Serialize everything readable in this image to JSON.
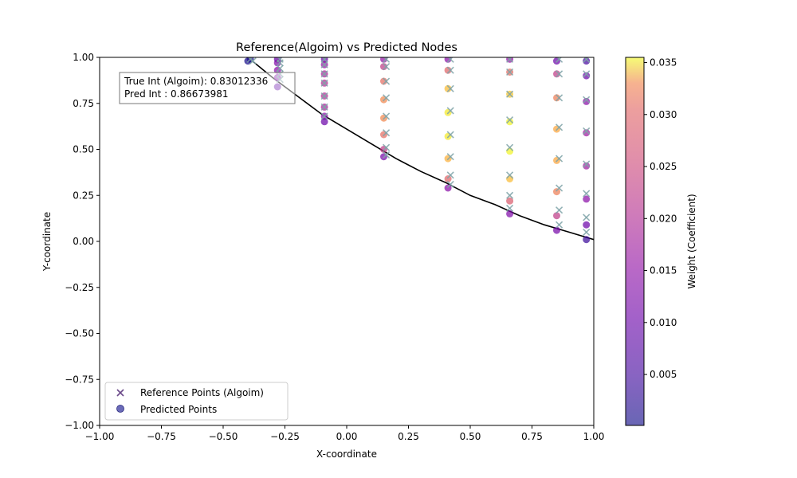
{
  "chart_data": {
    "type": "scatter",
    "title": "Reference(Algoim) vs Predicted Nodes",
    "xlabel": "X-coordinate",
    "ylabel": "Y-coordinate",
    "xlim": [
      -1.0,
      1.0
    ],
    "ylim": [
      -1.0,
      1.0
    ],
    "xticks": [
      "−1.00",
      "−0.75",
      "−0.50",
      "−0.25",
      "0.00",
      "0.25",
      "0.50",
      "0.75",
      "1.00"
    ],
    "yticks": [
      "−1.00",
      "−0.75",
      "−0.50",
      "−0.25",
      "0.00",
      "0.25",
      "0.50",
      "0.75",
      "1.00"
    ],
    "xtick_values": [
      -1.0,
      -0.75,
      -0.5,
      -0.25,
      0.0,
      0.25,
      0.5,
      0.75,
      1.0
    ],
    "ytick_values": [
      -1.0,
      -0.75,
      -0.5,
      -0.25,
      0.0,
      0.25,
      0.5,
      0.75,
      1.0
    ],
    "grid": false,
    "legend": {
      "placement": "lower-left",
      "entries": [
        {
          "label": "Reference Points (Algoim)",
          "marker": "x"
        },
        {
          "label": "Predicted Points",
          "marker": "circle"
        }
      ]
    },
    "annotation": {
      "line1": "True Int (Algoim): 0.83012336",
      "line2": "Pred Int : 0.86673981"
    },
    "colorbar": {
      "label": "Weight (Coefficient)",
      "colormap": "plasma",
      "range": [
        0.0001,
        0.0355
      ],
      "ticks": [
        "0.005",
        "0.010",
        "0.015",
        "0.020",
        "0.025",
        "0.030",
        "0.035"
      ],
      "tick_values": [
        0.005,
        0.01,
        0.015,
        0.02,
        0.025,
        0.03,
        0.035
      ]
    },
    "boundary_curve": {
      "color": "#000000",
      "x": [
        -0.4,
        -0.3,
        -0.2,
        -0.1,
        0.0,
        0.1,
        0.2,
        0.3,
        0.4,
        0.5,
        0.6,
        0.7,
        0.8,
        0.9,
        1.0
      ],
      "y": [
        1.0,
        0.89,
        0.79,
        0.69,
        0.61,
        0.53,
        0.45,
        0.38,
        0.32,
        0.25,
        0.2,
        0.14,
        0.09,
        0.05,
        0.01
      ]
    },
    "series": [
      {
        "name": "Reference Points (Algoim)",
        "marker": "x",
        "color": "#7fa3a8",
        "points": [
          {
            "x": -0.39,
            "y": 0.99
          },
          {
            "x": -0.38,
            "y": 0.98
          },
          {
            "x": -0.27,
            "y": 0.99
          },
          {
            "x": -0.27,
            "y": 0.97
          },
          {
            "x": -0.27,
            "y": 0.94
          },
          {
            "x": -0.27,
            "y": 0.91
          },
          {
            "x": -0.27,
            "y": 0.88
          },
          {
            "x": -0.09,
            "y": 0.99
          },
          {
            "x": -0.09,
            "y": 0.96
          },
          {
            "x": -0.09,
            "y": 0.91
          },
          {
            "x": -0.09,
            "y": 0.86
          },
          {
            "x": -0.09,
            "y": 0.79
          },
          {
            "x": -0.09,
            "y": 0.73
          },
          {
            "x": -0.09,
            "y": 0.68
          },
          {
            "x": 0.16,
            "y": 0.99
          },
          {
            "x": 0.16,
            "y": 0.95
          },
          {
            "x": 0.16,
            "y": 0.87
          },
          {
            "x": 0.16,
            "y": 0.78
          },
          {
            "x": 0.16,
            "y": 0.68
          },
          {
            "x": 0.16,
            "y": 0.59
          },
          {
            "x": 0.16,
            "y": 0.51
          },
          {
            "x": 0.16,
            "y": 0.47
          },
          {
            "x": 0.42,
            "y": 0.99
          },
          {
            "x": 0.42,
            "y": 0.93
          },
          {
            "x": 0.42,
            "y": 0.83
          },
          {
            "x": 0.42,
            "y": 0.71
          },
          {
            "x": 0.42,
            "y": 0.58
          },
          {
            "x": 0.42,
            "y": 0.46
          },
          {
            "x": 0.42,
            "y": 0.36
          },
          {
            "x": 0.42,
            "y": 0.31
          },
          {
            "x": 0.66,
            "y": 0.99
          },
          {
            "x": 0.66,
            "y": 0.92
          },
          {
            "x": 0.66,
            "y": 0.8
          },
          {
            "x": 0.66,
            "y": 0.66
          },
          {
            "x": 0.66,
            "y": 0.51
          },
          {
            "x": 0.66,
            "y": 0.36
          },
          {
            "x": 0.66,
            "y": 0.25
          },
          {
            "x": 0.66,
            "y": 0.18
          },
          {
            "x": 0.86,
            "y": 0.99
          },
          {
            "x": 0.86,
            "y": 0.91
          },
          {
            "x": 0.86,
            "y": 0.78
          },
          {
            "x": 0.86,
            "y": 0.62
          },
          {
            "x": 0.86,
            "y": 0.45
          },
          {
            "x": 0.86,
            "y": 0.29
          },
          {
            "x": 0.86,
            "y": 0.17
          },
          {
            "x": 0.86,
            "y": 0.09
          },
          {
            "x": 0.97,
            "y": 0.99
          },
          {
            "x": 0.97,
            "y": 0.91
          },
          {
            "x": 0.97,
            "y": 0.77
          },
          {
            "x": 0.97,
            "y": 0.6
          },
          {
            "x": 0.97,
            "y": 0.42
          },
          {
            "x": 0.97,
            "y": 0.26
          },
          {
            "x": 0.97,
            "y": 0.13
          },
          {
            "x": 0.97,
            "y": 0.05
          }
        ]
      },
      {
        "name": "Predicted Points",
        "marker": "circle",
        "points": [
          {
            "x": -0.4,
            "y": 0.98,
            "w": 0.0005
          },
          {
            "x": -0.39,
            "y": 0.99,
            "w": 0.001
          },
          {
            "x": -0.28,
            "y": 0.99,
            "w": 0.007
          },
          {
            "x": -0.28,
            "y": 0.97,
            "w": 0.009
          },
          {
            "x": -0.28,
            "y": 0.93,
            "w": 0.01
          },
          {
            "x": -0.28,
            "y": 0.89,
            "w": 0.009
          },
          {
            "x": -0.28,
            "y": 0.84,
            "w": 0.006
          },
          {
            "x": -0.09,
            "y": 0.99,
            "w": 0.007
          },
          {
            "x": -0.09,
            "y": 0.96,
            "w": 0.011
          },
          {
            "x": -0.09,
            "y": 0.91,
            "w": 0.013
          },
          {
            "x": -0.09,
            "y": 0.86,
            "w": 0.014
          },
          {
            "x": -0.09,
            "y": 0.79,
            "w": 0.014
          },
          {
            "x": -0.09,
            "y": 0.73,
            "w": 0.013
          },
          {
            "x": -0.09,
            "y": 0.68,
            "w": 0.01
          },
          {
            "x": -0.09,
            "y": 0.65,
            "w": 0.007
          },
          {
            "x": 0.15,
            "y": 0.99,
            "w": 0.011
          },
          {
            "x": 0.15,
            "y": 0.95,
            "w": 0.016
          },
          {
            "x": 0.15,
            "y": 0.87,
            "w": 0.022
          },
          {
            "x": 0.15,
            "y": 0.77,
            "w": 0.025
          },
          {
            "x": 0.15,
            "y": 0.67,
            "w": 0.025
          },
          {
            "x": 0.15,
            "y": 0.58,
            "w": 0.022
          },
          {
            "x": 0.15,
            "y": 0.5,
            "w": 0.016
          },
          {
            "x": 0.15,
            "y": 0.46,
            "w": 0.008
          },
          {
            "x": 0.41,
            "y": 0.99,
            "w": 0.01
          },
          {
            "x": 0.41,
            "y": 0.93,
            "w": 0.021
          },
          {
            "x": 0.41,
            "y": 0.83,
            "w": 0.03
          },
          {
            "x": 0.41,
            "y": 0.7,
            "w": 0.034
          },
          {
            "x": 0.41,
            "y": 0.57,
            "w": 0.034
          },
          {
            "x": 0.41,
            "y": 0.45,
            "w": 0.029
          },
          {
            "x": 0.41,
            "y": 0.34,
            "w": 0.021
          },
          {
            "x": 0.41,
            "y": 0.29,
            "w": 0.01
          },
          {
            "x": 0.66,
            "y": 0.99,
            "w": 0.011
          },
          {
            "x": 0.66,
            "y": 0.92,
            "w": 0.022
          },
          {
            "x": 0.66,
            "y": 0.8,
            "w": 0.031
          },
          {
            "x": 0.66,
            "y": 0.65,
            "w": 0.035
          },
          {
            "x": 0.66,
            "y": 0.49,
            "w": 0.035
          },
          {
            "x": 0.66,
            "y": 0.34,
            "w": 0.03
          },
          {
            "x": 0.66,
            "y": 0.22,
            "w": 0.02
          },
          {
            "x": 0.66,
            "y": 0.15,
            "w": 0.009
          },
          {
            "x": 0.85,
            "y": 0.98,
            "w": 0.007
          },
          {
            "x": 0.85,
            "y": 0.91,
            "w": 0.016
          },
          {
            "x": 0.85,
            "y": 0.78,
            "w": 0.024
          },
          {
            "x": 0.85,
            "y": 0.61,
            "w": 0.028
          },
          {
            "x": 0.85,
            "y": 0.44,
            "w": 0.028
          },
          {
            "x": 0.85,
            "y": 0.27,
            "w": 0.024
          },
          {
            "x": 0.85,
            "y": 0.14,
            "w": 0.016
          },
          {
            "x": 0.85,
            "y": 0.06,
            "w": 0.008
          },
          {
            "x": 0.97,
            "y": 0.98,
            "w": 0.004
          },
          {
            "x": 0.97,
            "y": 0.9,
            "w": 0.007
          },
          {
            "x": 0.97,
            "y": 0.76,
            "w": 0.01
          },
          {
            "x": 0.97,
            "y": 0.59,
            "w": 0.012
          },
          {
            "x": 0.97,
            "y": 0.41,
            "w": 0.012
          },
          {
            "x": 0.97,
            "y": 0.23,
            "w": 0.01
          },
          {
            "x": 0.97,
            "y": 0.09,
            "w": 0.007
          },
          {
            "x": 0.97,
            "y": 0.01,
            "w": 0.003
          }
        ]
      }
    ]
  }
}
